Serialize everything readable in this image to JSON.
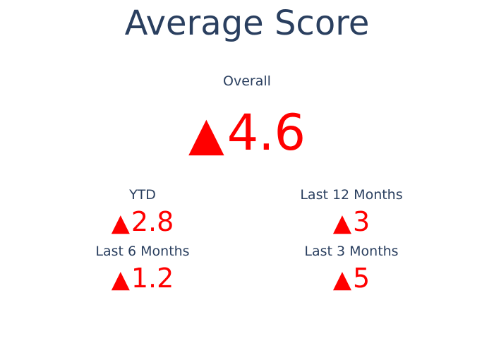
{
  "chart_data": {
    "type": "indicator",
    "title": "Average Score",
    "indicators": [
      {
        "label": "Overall",
        "value": "4.6",
        "direction": "up",
        "color": "#ff0000"
      },
      {
        "label": "YTD",
        "value": "2.8",
        "direction": "up",
        "color": "#ff0000"
      },
      {
        "label": "Last 12 Months",
        "value": "3",
        "direction": "up",
        "color": "#ff0000"
      },
      {
        "label": "Last 6 Months",
        "value": "1.2",
        "direction": "up",
        "color": "#ff0000"
      },
      {
        "label": "Last 3 Months",
        "value": "5",
        "direction": "up",
        "color": "#ff0000"
      }
    ],
    "arrow_symbol": "▲",
    "text_color": "#2a3f5f"
  }
}
